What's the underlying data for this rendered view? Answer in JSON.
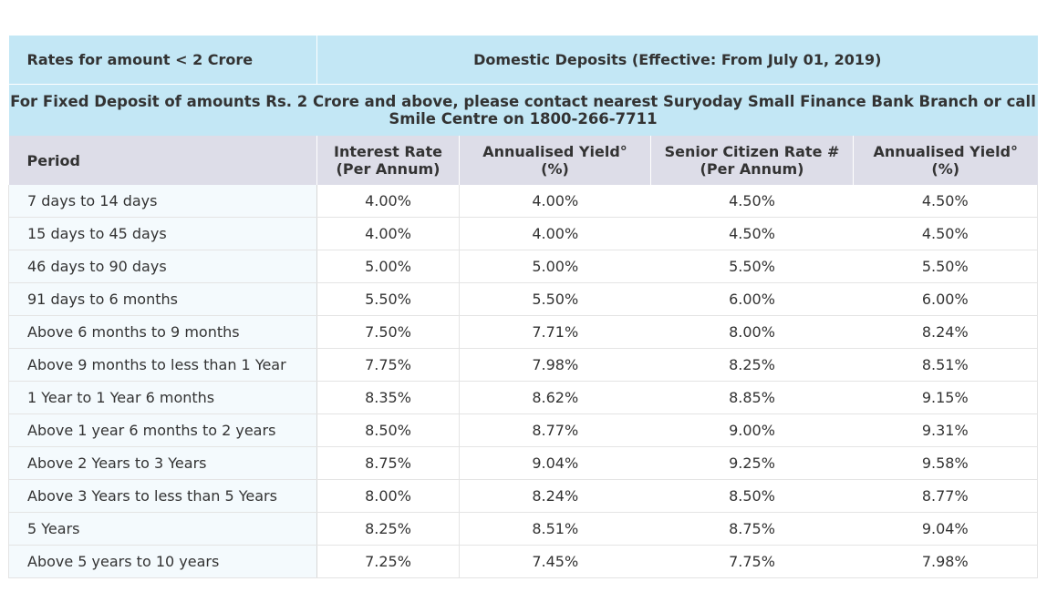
{
  "header": {
    "left_title": "Rates for amount < 2 Crore",
    "right_title": "Domestic Deposits (Effective: From July 01, 2019)"
  },
  "notice": {
    "line1": "For Fixed Deposit of amounts Rs. 2 Crore and above, please contact nearest Suryoday Small Finance Bank Branch or call",
    "line2": "Smile Centre on 1800-266-7711"
  },
  "columns": {
    "period": "Period",
    "rate_1": "Interest Rate",
    "rate_2": "(Per Annum)",
    "yield_1": "Annualised Yield°",
    "yield_2": "(%)",
    "senior_1": "Senior Citizen Rate #",
    "senior_2": "(Per Annum)",
    "senior_yield_1": "Annualised Yield°",
    "senior_yield_2": "(%)"
  },
  "rows": [
    {
      "period": "7 days to 14 days",
      "rate": "4.00%",
      "yield": "4.00%",
      "senior": "4.50%",
      "senior_yield": "4.50%"
    },
    {
      "period": "15 days to 45 days",
      "rate": "4.00%",
      "yield": "4.00%",
      "senior": "4.50%",
      "senior_yield": "4.50%"
    },
    {
      "period": "46 days to 90 days",
      "rate": "5.00%",
      "yield": "5.00%",
      "senior": "5.50%",
      "senior_yield": "5.50%"
    },
    {
      "period": "91 days to 6 months",
      "rate": "5.50%",
      "yield": "5.50%",
      "senior": "6.00%",
      "senior_yield": "6.00%"
    },
    {
      "period": "Above 6 months to 9 months",
      "rate": "7.50%",
      "yield": "7.71%",
      "senior": "8.00%",
      "senior_yield": "8.24%"
    },
    {
      "period": "Above 9 months to less than 1 Year",
      "rate": "7.75%",
      "yield": "7.98%",
      "senior": "8.25%",
      "senior_yield": "8.51%"
    },
    {
      "period": "1 Year to 1 Year 6 months",
      "rate": "8.35%",
      "yield": "8.62%",
      "senior": "8.85%",
      "senior_yield": "9.15%"
    },
    {
      "period": "Above 1 year 6 months to 2 years",
      "rate": "8.50%",
      "yield": "8.77%",
      "senior": "9.00%",
      "senior_yield": "9.31%"
    },
    {
      "period": "Above 2 Years to 3 Years",
      "rate": "8.75%",
      "yield": "9.04%",
      "senior": "9.25%",
      "senior_yield": "9.58%"
    },
    {
      "period": "Above 3 Years to less than 5 Years",
      "rate": "8.00%",
      "yield": "8.24%",
      "senior": "8.50%",
      "senior_yield": "8.77%"
    },
    {
      "period": "5 Years",
      "rate": "8.25%",
      "yield": "8.51%",
      "senior": "8.75%",
      "senior_yield": "9.04%"
    },
    {
      "period": "Above 5 years to 10 years",
      "rate": "7.25%",
      "yield": "7.45%",
      "senior": "7.75%",
      "senior_yield": "7.98%"
    }
  ]
}
